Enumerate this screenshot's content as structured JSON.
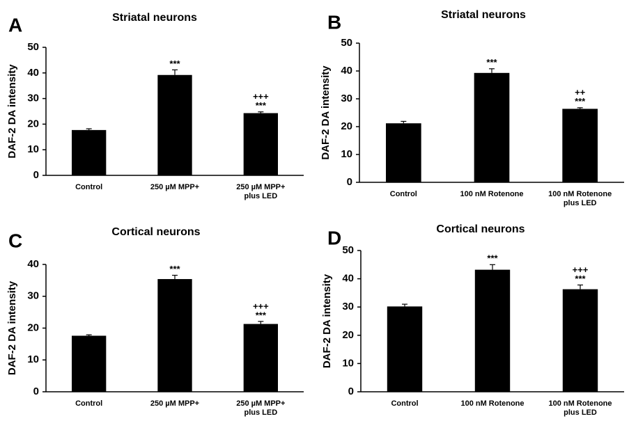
{
  "chart_data": [
    {
      "type": "bar",
      "panel": "A",
      "title": "Striatal neurons",
      "y_label": "DAF-2 DA intensity",
      "categories": [
        [
          "Control"
        ],
        [
          "250 µM MPP+"
        ],
        [
          "250 µM MPP+",
          "plus LED"
        ]
      ],
      "values": [
        17.7,
        39.2,
        24.3
      ],
      "errors": [
        0.5,
        2.0,
        0.5
      ],
      "significance": [
        [],
        [
          "***"
        ],
        [
          "+++",
          "***"
        ]
      ],
      "color": "#000000",
      "ylim": [
        0,
        50
      ],
      "yticks": [
        0,
        10,
        20,
        30,
        40,
        50
      ],
      "grid": false
    },
    {
      "type": "bar",
      "panel": "B",
      "title": "Striatal neurons",
      "y_label": "DAF-2 DA intensity",
      "categories": [
        [
          "Control"
        ],
        [
          "100 nM Rotenone"
        ],
        [
          "100 nM Rotenone",
          "plus LED"
        ]
      ],
      "values": [
        21.2,
        39.3,
        26.4
      ],
      "errors": [
        0.7,
        1.5,
        0.4
      ],
      "significance": [
        [],
        [
          "***"
        ],
        [
          "++",
          "***"
        ]
      ],
      "color": "#000000",
      "ylim": [
        0,
        50
      ],
      "yticks": [
        0,
        10,
        20,
        30,
        40,
        50
      ],
      "grid": false
    },
    {
      "type": "bar",
      "panel": "C",
      "title": "Cortical neurons",
      "y_label": "DAF-2 DA intensity",
      "categories": [
        [
          "Control"
        ],
        [
          "250 µM MPP+"
        ],
        [
          "250 µM MPP+",
          "plus LED"
        ]
      ],
      "values": [
        17.6,
        35.4,
        21.3
      ],
      "errors": [
        0.3,
        1.2,
        0.8
      ],
      "significance": [
        [],
        [
          "***"
        ],
        [
          "+++",
          "***"
        ]
      ],
      "color": "#000000",
      "ylim": [
        0,
        40
      ],
      "yticks": [
        0,
        10,
        20,
        30,
        40
      ],
      "grid": false
    },
    {
      "type": "bar",
      "panel": "D",
      "title": "Cortical neurons",
      "y_label": "DAF-2 DA intensity",
      "categories": [
        [
          "Control"
        ],
        [
          "100 nM Rotenone"
        ],
        [
          "100 nM Rotenone",
          "plus LED"
        ]
      ],
      "values": [
        30.2,
        43.2,
        36.3
      ],
      "errors": [
        0.8,
        1.8,
        1.5
      ],
      "significance": [
        [],
        [
          "***"
        ],
        [
          "+++",
          "***"
        ]
      ],
      "color": "#000000",
      "ylim": [
        0,
        50
      ],
      "yticks": [
        0,
        10,
        20,
        30,
        40,
        50
      ],
      "grid": false
    }
  ]
}
